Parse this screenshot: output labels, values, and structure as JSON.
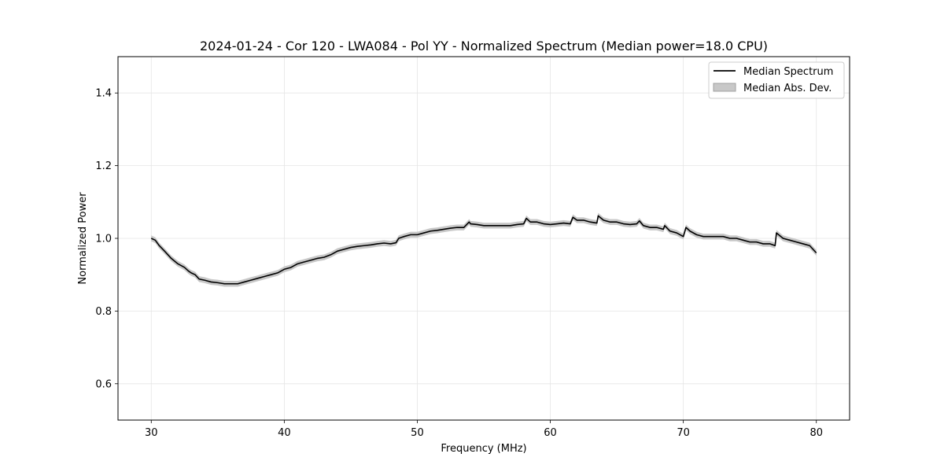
{
  "chart_data": {
    "type": "line",
    "title": "2024-01-24 - Cor 120 - LWA084 - Pol YY - Normalized Spectrum (Median power=18.0 CPU)",
    "xlabel": "Frequency (MHz)",
    "ylabel": "Normalized Power",
    "xlim": [
      27.5,
      82.5
    ],
    "ylim": [
      0.5,
      1.5
    ],
    "xticks": [
      30,
      40,
      50,
      60,
      70,
      80
    ],
    "yticks": [
      0.6,
      0.8,
      1.0,
      1.2,
      1.4
    ],
    "xtick_labels": [
      "30",
      "40",
      "50",
      "60",
      "70",
      "80"
    ],
    "ytick_labels": [
      "0.6",
      "0.8",
      "1.0",
      "1.2",
      "1.4"
    ],
    "grid": true,
    "legend": {
      "location": "top-right",
      "entries": [
        "Median Spectrum",
        "Median Abs. Dev."
      ]
    },
    "series": [
      {
        "name": "Median Spectrum",
        "color": "#000000",
        "x": [
          30.0,
          30.3,
          30.6,
          31.0,
          31.5,
          32.0,
          32.5,
          32.8,
          33.0,
          33.3,
          33.6,
          34.0,
          34.5,
          35.0,
          35.5,
          36.0,
          36.5,
          37.0,
          37.5,
          38.0,
          38.5,
          39.0,
          39.5,
          40.0,
          40.5,
          41.0,
          41.5,
          42.0,
          42.5,
          43.0,
          43.5,
          44.0,
          44.5,
          45.0,
          45.5,
          46.0,
          46.5,
          47.0,
          47.5,
          48.0,
          48.4,
          48.6,
          49.0,
          49.5,
          50.0,
          50.5,
          51.0,
          51.5,
          52.0,
          52.5,
          53.0,
          53.5,
          53.9,
          54.0,
          54.5,
          55.0,
          55.5,
          56.0,
          56.5,
          57.0,
          57.5,
          58.0,
          58.2,
          58.5,
          59.0,
          59.5,
          60.0,
          60.5,
          61.0,
          61.5,
          61.7,
          62.0,
          62.5,
          63.0,
          63.5,
          63.6,
          64.0,
          64.5,
          65.0,
          65.5,
          66.0,
          66.5,
          66.7,
          67.0,
          67.5,
          68.0,
          68.5,
          68.6,
          69.0,
          69.5,
          70.0,
          70.2,
          70.5,
          71.0,
          71.5,
          72.0,
          72.5,
          73.0,
          73.5,
          74.0,
          74.5,
          75.0,
          75.5,
          76.0,
          76.5,
          76.9,
          77.0,
          77.5,
          78.0,
          78.5,
          79.0,
          79.5,
          80.0
        ],
        "y": [
          1.0,
          0.995,
          0.98,
          0.965,
          0.945,
          0.93,
          0.92,
          0.91,
          0.905,
          0.9,
          0.888,
          0.885,
          0.88,
          0.878,
          0.875,
          0.875,
          0.875,
          0.88,
          0.885,
          0.89,
          0.895,
          0.9,
          0.905,
          0.915,
          0.92,
          0.93,
          0.935,
          0.94,
          0.945,
          0.948,
          0.955,
          0.965,
          0.97,
          0.975,
          0.978,
          0.98,
          0.982,
          0.985,
          0.987,
          0.985,
          0.988,
          1.0,
          1.005,
          1.01,
          1.01,
          1.015,
          1.02,
          1.022,
          1.025,
          1.028,
          1.03,
          1.03,
          1.045,
          1.04,
          1.038,
          1.035,
          1.035,
          1.035,
          1.035,
          1.035,
          1.038,
          1.04,
          1.055,
          1.045,
          1.045,
          1.04,
          1.038,
          1.04,
          1.042,
          1.04,
          1.058,
          1.05,
          1.05,
          1.045,
          1.042,
          1.062,
          1.05,
          1.045,
          1.045,
          1.04,
          1.038,
          1.04,
          1.048,
          1.035,
          1.03,
          1.03,
          1.025,
          1.035,
          1.02,
          1.015,
          1.005,
          1.03,
          1.02,
          1.01,
          1.005,
          1.005,
          1.005,
          1.005,
          1.0,
          1.0,
          0.995,
          0.99,
          0.99,
          0.985,
          0.985,
          0.98,
          1.015,
          1.0,
          0.995,
          0.99,
          0.985,
          0.98,
          0.96
        ]
      },
      {
        "name": "Median Abs. Dev.",
        "color": "#c8c8c8",
        "band_halfwidth": 0.008
      }
    ]
  }
}
